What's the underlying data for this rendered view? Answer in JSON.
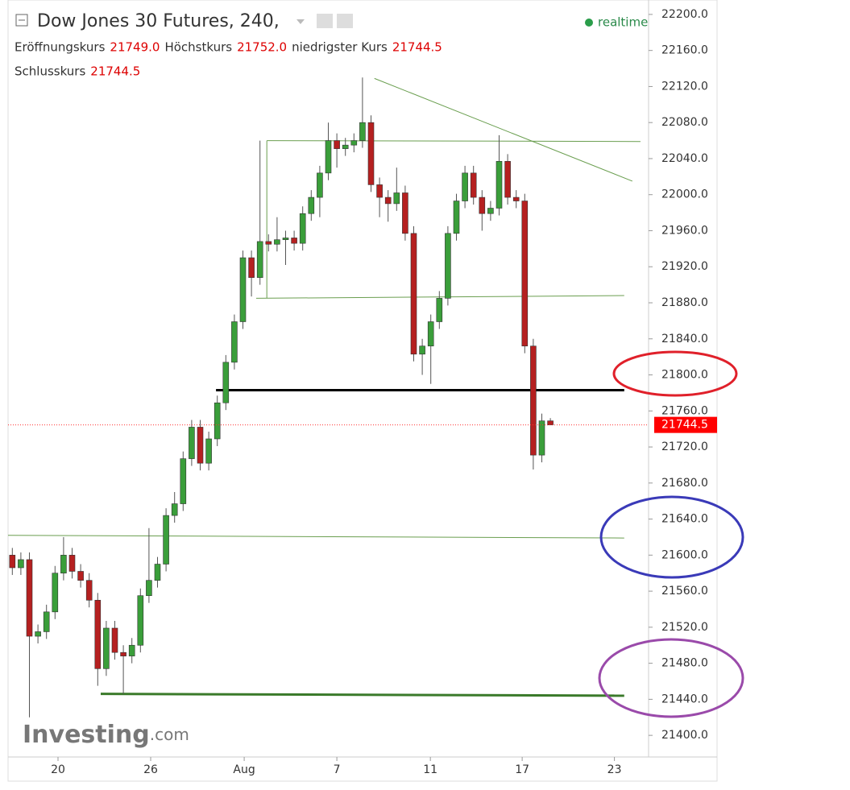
{
  "chart_data": {
    "type": "candlestick",
    "title": "Dow Jones 30 Futures, 240,",
    "status": "realtime",
    "header": [
      {
        "label": "Eröffnungskurs",
        "value": "21749.0"
      },
      {
        "label": "Höchstkurs",
        "value": "21752.0"
      },
      {
        "label": "niedrigster Kurs",
        "value": "21744.5"
      },
      {
        "label": "Schlusskurs",
        "value": "21744.5"
      }
    ],
    "watermark": "Investing",
    "watermark_suffix": ".com",
    "up_color": "#3a9e3a",
    "down_color": "#b52020",
    "x": [
      1,
      3,
      5,
      7,
      9,
      11,
      13,
      15,
      17,
      19,
      21,
      23,
      25,
      27,
      29,
      31,
      33,
      35,
      37,
      39,
      41,
      43,
      45,
      47,
      49,
      51,
      53,
      55,
      57,
      59,
      61,
      63,
      65,
      67,
      69,
      71,
      73,
      75,
      77,
      79,
      81,
      83,
      85,
      87,
      89,
      91,
      93,
      95,
      97,
      99,
      101,
      103,
      105,
      107,
      109,
      111,
      113,
      115,
      117,
      119,
      121,
      123,
      125,
      127
    ],
    "open": [
      21600,
      21586,
      21595,
      21510,
      21515,
      21537,
      21580,
      21600,
      21582,
      21572,
      21550,
      21474,
      21519,
      21492,
      21488,
      21500,
      21555,
      21572,
      21590,
      21644,
      21657,
      21707,
      21742,
      21702,
      21729,
      21769,
      21814,
      21859,
      21930,
      21908,
      21948,
      21945,
      21950,
      21952,
      21946,
      21979,
      21997,
      22024,
      22060,
      22051,
      22055,
      22060,
      22080,
      22011,
      21997,
      21990,
      22002,
      21957,
      21823,
      21832,
      21859,
      21885,
      21957,
      21993,
      22024,
      21997,
      21979,
      21985,
      22037,
      21997,
      21993,
      21832,
      21711,
      21749
    ],
    "high": [
      21608,
      21603,
      21603,
      21523,
      21545,
      21588,
      21620,
      21608,
      21590,
      21580,
      21558,
      21527,
      21527,
      21500,
      21508,
      21563,
      21630,
      21598,
      21652,
      21670,
      21715,
      21750,
      21750,
      21737,
      21777,
      21822,
      21867,
      21938,
      21938,
      22060,
      21956,
      21975,
      21960,
      21960,
      21987,
      22005,
      22032,
      22080,
      22068,
      22063,
      22068,
      22130,
      22088,
      22019,
      22005,
      22030,
      22010,
      21965,
      21840,
      21867,
      21893,
      21965,
      22001,
      22032,
      22032,
      22005,
      21993,
      22066,
      22045,
      22005,
      22001,
      21840,
      21757,
      21752
    ],
    "low": [
      21578,
      21578,
      21420,
      21502,
      21507,
      21529,
      21572,
      21574,
      21564,
      21542,
      21455,
      21466,
      21484,
      21446,
      21480,
      21492,
      21547,
      21564,
      21582,
      21636,
      21649,
      21699,
      21694,
      21694,
      21721,
      21761,
      21806,
      21851,
      21887,
      21900,
      21937,
      21937,
      21922,
      21938,
      21938,
      21971,
      21975,
      22016,
      22030,
      22043,
      22047,
      22052,
      22003,
      21975,
      21970,
      21982,
      21949,
      21815,
      21800,
      21790,
      21851,
      21877,
      21949,
      21985,
      21989,
      21960,
      21971,
      21977,
      21989,
      21985,
      21824,
      21695,
      21703,
      21744.5
    ],
    "close": [
      21586,
      21595,
      21510,
      21515,
      21537,
      21580,
      21600,
      21582,
      21572,
      21550,
      21474,
      21519,
      21492,
      21488,
      21500,
      21555,
      21572,
      21590,
      21644,
      21657,
      21707,
      21742,
      21702,
      21729,
      21769,
      21814,
      21859,
      21930,
      21908,
      21948,
      21945,
      21950,
      21952,
      21946,
      21979,
      21997,
      22024,
      22060,
      22051,
      22055,
      22060,
      22080,
      22011,
      21997,
      21990,
      22002,
      21957,
      21823,
      21832,
      21859,
      21885,
      21957,
      21993,
      22024,
      21997,
      21979,
      21985,
      22037,
      21997,
      21993,
      21832,
      21711,
      21749,
      21744.5
    ],
    "xlim": [
      0,
      150
    ],
    "xticks": [
      {
        "value": 11.7,
        "label": "20"
      },
      {
        "value": 33.4,
        "label": "26"
      },
      {
        "value": 55.3,
        "label": "Aug"
      },
      {
        "value": 77,
        "label": "7"
      },
      {
        "value": 98.9,
        "label": "11"
      },
      {
        "value": 120.4,
        "label": "17"
      },
      {
        "value": 142,
        "label": "23"
      }
    ],
    "ylim": [
      21376,
      22216
    ],
    "yticks": [
      {
        "value": 21400,
        "label": "21400.0"
      },
      {
        "value": 21440,
        "label": "21440.0"
      },
      {
        "value": 21480,
        "label": "21480.0"
      },
      {
        "value": 21520,
        "label": "21520.0"
      },
      {
        "value": 21560,
        "label": "21560.0"
      },
      {
        "value": 21600,
        "label": "21600.0"
      },
      {
        "value": 21640,
        "label": "21640.0"
      },
      {
        "value": 21680,
        "label": "21680.0"
      },
      {
        "value": 21720,
        "label": "21720.0"
      },
      {
        "value": 21760,
        "label": "21760.0"
      },
      {
        "value": 21800,
        "label": "21800.0"
      },
      {
        "value": 21840,
        "label": "21840.0"
      },
      {
        "value": 21880,
        "label": "21880.0"
      },
      {
        "value": 21920,
        "label": "21920.0"
      },
      {
        "value": 21960,
        "label": "21960.0"
      },
      {
        "value": 22000,
        "label": "22000.0"
      },
      {
        "value": 22040,
        "label": "22040.0"
      },
      {
        "value": 22080,
        "label": "22080.0"
      },
      {
        "value": 22120,
        "label": "22120.0"
      },
      {
        "value": 22160,
        "label": "22160.0"
      },
      {
        "value": 22200,
        "label": "22200.0"
      }
    ],
    "drawings": [
      {
        "x": [
          60.6,
          148.1
        ],
        "y": [
          22060,
          22059
        ],
        "color": "#6a9e4f",
        "width": 1
      },
      {
        "x": [
          60.6,
          60.6
        ],
        "y": [
          22060,
          21885
        ],
        "color": "#6a9e4f",
        "width": 1
      },
      {
        "x": [
          58.1,
          144.3
        ],
        "y": [
          21885,
          21888
        ],
        "color": "#6a9e4f",
        "width": 1
      },
      {
        "x": [
          85.8,
          146.2
        ],
        "y": [
          22129,
          22015
        ],
        "color": "#6a9e4f",
        "width": 1
      },
      {
        "x": [
          0,
          144.3
        ],
        "y": [
          21622,
          21619
        ],
        "color": "#6a9e4f",
        "width": 1
      },
      {
        "x": [
          48.7,
          144.3
        ],
        "y": [
          21783,
          21783
        ],
        "color": "#000000",
        "width": 3
      },
      {
        "x": [
          21.7,
          144.3
        ],
        "y": [
          21446,
          21444
        ],
        "color": "#3a7a2a",
        "width": 3
      }
    ]
  }
}
